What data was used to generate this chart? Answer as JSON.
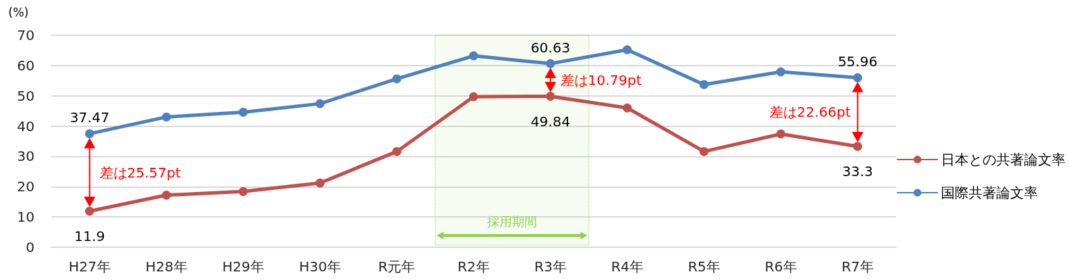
{
  "chart_data": {
    "type": "line",
    "ylabel": "(%)",
    "categories": [
      "H27年",
      "H28年",
      "H29年",
      "H30年",
      "R元年",
      "R2年",
      "R3年",
      "R4年",
      "R5年",
      "R6年",
      "R7年"
    ],
    "series": [
      {
        "name": "日本との共著論文率",
        "color": "#c0504d",
        "values": [
          11.9,
          17.2,
          18.4,
          21.2,
          31.6,
          49.7,
          49.84,
          46.0,
          31.6,
          37.4,
          33.3
        ],
        "value_labels": [
          "11.9",
          null,
          null,
          null,
          null,
          null,
          "49.84",
          null,
          null,
          null,
          "33.3"
        ]
      },
      {
        "name": "国際共著論文率",
        "color": "#4f81bd",
        "values": [
          37.47,
          43.0,
          44.6,
          47.4,
          55.6,
          63.2,
          60.63,
          65.2,
          53.7,
          57.9,
          55.96
        ],
        "value_labels": [
          "37.47",
          null,
          null,
          null,
          null,
          null,
          "60.63",
          null,
          null,
          null,
          "55.96"
        ]
      }
    ],
    "ylim": [
      0,
      70
    ],
    "yticks": [
      0,
      10,
      20,
      30,
      40,
      50,
      60,
      70
    ],
    "bands": [
      {
        "axis": "x",
        "from": "R2年",
        "to": "R3年",
        "label": "採用期間",
        "color": "#92d050"
      }
    ],
    "annotations": [
      {
        "text": "差は25.57pt",
        "x": "H27年",
        "y": 37.47
      },
      {
        "text": "差は10.79pt",
        "x": "R3年",
        "y": 60.63
      },
      {
        "text": "差は22.66pt",
        "x": "R7年",
        "y": 55.96
      }
    ],
    "grid": "y",
    "legend": "right",
    "marker": "circle",
    "line_style": "solid"
  }
}
